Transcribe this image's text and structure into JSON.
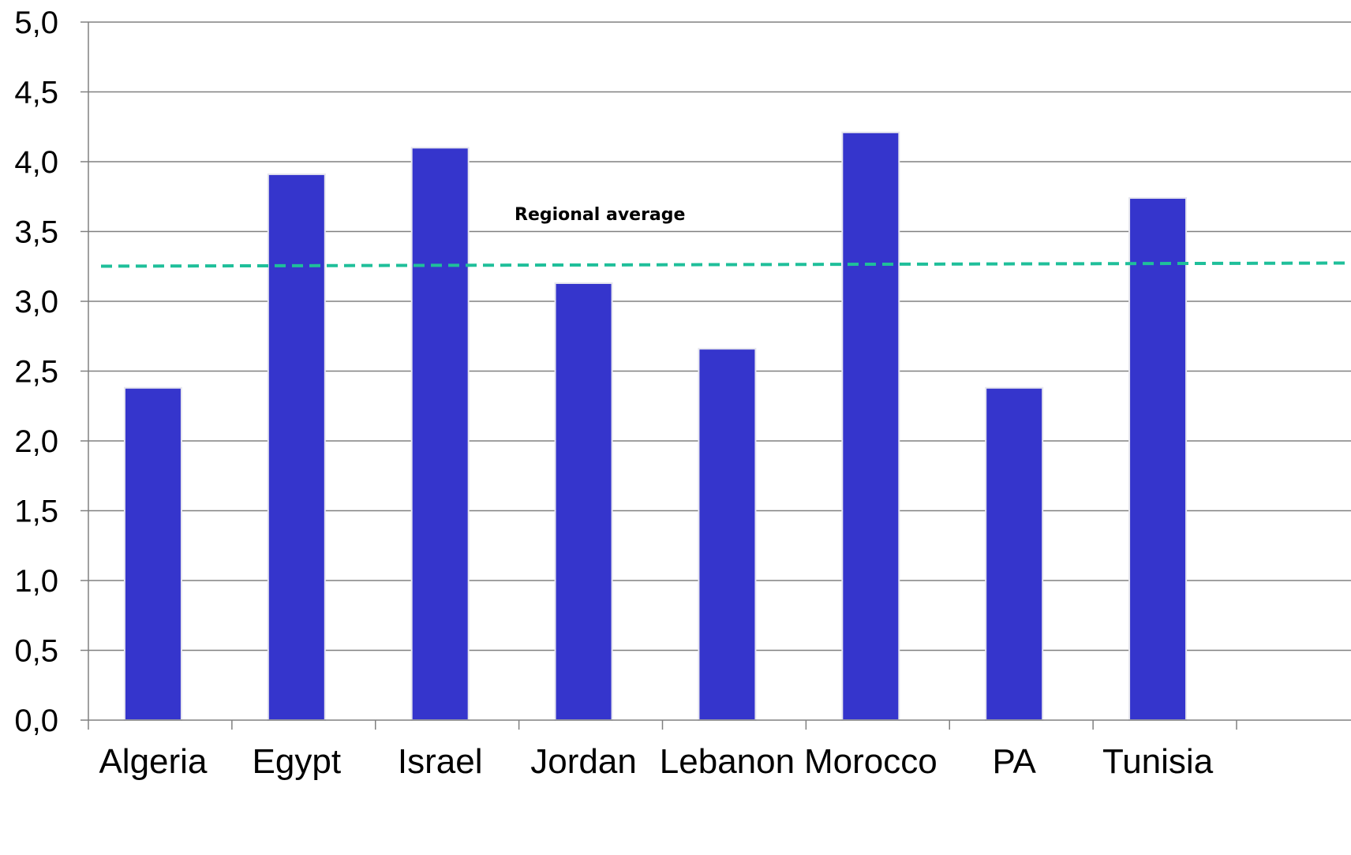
{
  "chart_data": {
    "type": "bar",
    "title": "",
    "xlabel": "",
    "ylabel": "",
    "categories": [
      "Algeria",
      "Egypt",
      "Israel",
      "Jordan",
      "Lebanon",
      "Morocco",
      "PA",
      "Tunisia"
    ],
    "values": [
      2.38,
      3.91,
      4.1,
      3.13,
      2.66,
      4.21,
      2.38,
      3.74
    ],
    "ylim": [
      0,
      5
    ],
    "yticks": [
      "0,0",
      "0,5",
      "1,0",
      "1,5",
      "2,0",
      "2,5",
      "3,0",
      "3,5",
      "4,0",
      "4,5",
      "5,0"
    ],
    "grid": true,
    "reference_line": {
      "label": "Regional average",
      "value": 3.26,
      "style": "dashed"
    },
    "colors": {
      "bar": "#3535cc",
      "average_line": "#1fbf9a",
      "grid": "#808080"
    }
  }
}
